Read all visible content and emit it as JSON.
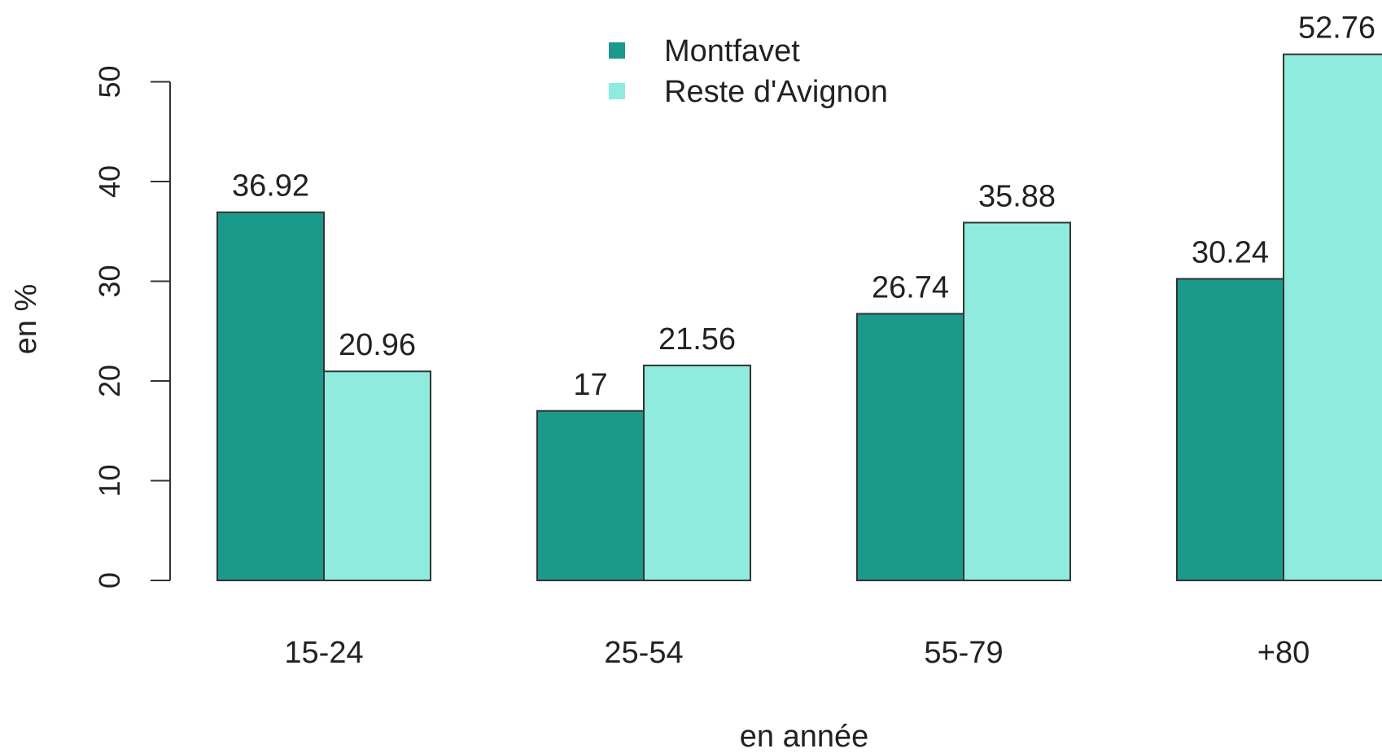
{
  "chart_data": {
    "type": "bar",
    "categories": [
      "15-24",
      "25-54",
      "55-79",
      "+80"
    ],
    "series": [
      {
        "name": "Montfavet",
        "values": [
          36.92,
          17,
          26.74,
          30.24
        ],
        "labels": [
          "36.92",
          "17",
          "26.74",
          "30.24"
        ],
        "color": "#1b998b"
      },
      {
        "name": "Reste d'Avignon",
        "values": [
          20.96,
          21.56,
          35.88,
          52.76
        ],
        "labels": [
          "20.96",
          "21.56",
          "35.88",
          "52.76"
        ],
        "color": "#8eebdd"
      }
    ],
    "xlabel": "en année",
    "ylabel": "en %",
    "ylim": [
      0,
      50
    ],
    "yticks": [
      0,
      10,
      20,
      30,
      40,
      50
    ],
    "legend_position": "top-center",
    "grid": false
  }
}
